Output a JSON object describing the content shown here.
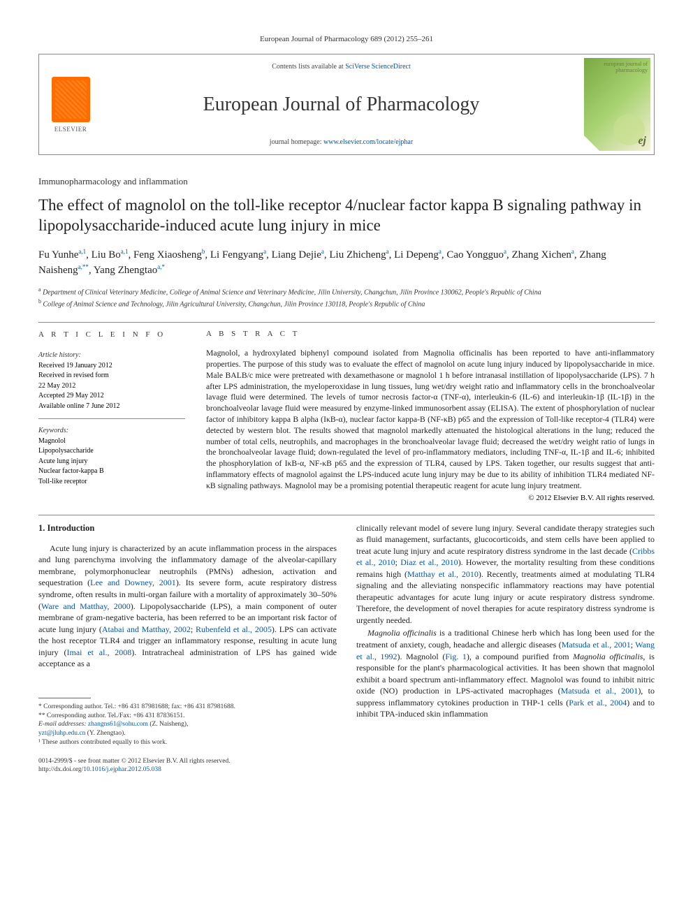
{
  "running_header": "European Journal of Pharmacology 689 (2012) 255–261",
  "masthead": {
    "publisher": "ELSEVIER",
    "contents_prefix": "Contents lists available at ",
    "contents_link": "SciVerse ScienceDirect",
    "journal_name": "European Journal of Pharmacology",
    "homepage_prefix": "journal homepage: ",
    "homepage_link": "www.elsevier.com/locate/ejphar",
    "cover_label": "european journal of pharmacology",
    "cover_monogram": "ej"
  },
  "article_type": "Immunopharmacology and inflammation",
  "title": "The effect of magnolol on the toll-like receptor 4/nuclear factor kappa B signaling pathway in lipopolysaccharide-induced acute lung injury in mice",
  "authors_html": "Fu Yunhe<sup>a,1</sup>, Liu Bo<sup>a,1</sup>, Feng Xiaosheng<sup>b</sup>, Li Fengyang<sup>a</sup>, Liang Dejie<sup>a</sup>, Liu Zhicheng<sup>a</sup>, Li Depeng<sup>a</sup>, Cao Yongguo<sup>a</sup>, Zhang Xichen<sup>a</sup>, Zhang Naisheng<sup>a,**</sup>, Yang Zhengtao<sup>a,*</sup>",
  "affiliations": [
    {
      "sup": "a",
      "text": "Department of Clinical Veterinary Medicine, College of Animal Science and Veterinary Medicine, Jilin University, Changchun, Jilin Province 130062, People's Republic of China"
    },
    {
      "sup": "b",
      "text": "College of Animal Science and Technology, Jilin Agricultural University, Changchun, Jilin Province 130118, People's Republic of China"
    }
  ],
  "info": {
    "label": "A R T I C L E   I N F O",
    "history_head": "Article history:",
    "history": [
      "Received 19 January 2012",
      "Received in revised form",
      "22 May 2012",
      "Accepted 29 May 2012",
      "Available online 7 June 2012"
    ],
    "keywords_head": "Keywords:",
    "keywords": [
      "Magnolol",
      "Lipopolysaccharide",
      "Acute lung injury",
      "Nuclear factor-kappa B",
      "Toll-like receptor"
    ]
  },
  "abstract": {
    "label": "A B S T R A C T",
    "text": "Magnolol, a hydroxylated biphenyl compound isolated from Magnolia officinalis has been reported to have anti-inflammatory properties. The purpose of this study was to evaluate the effect of magnolol on acute lung injury induced by lipopolysaccharide in mice. Male BALB/c mice were pretreated with dexamethasone or magnolol 1 h before intranasal instillation of lipopolysaccharide (LPS). 7 h after LPS administration, the myeloperoxidase in lung tissues, lung wet/dry weight ratio and inflammatory cells in the bronchoalveolar lavage fluid were determined. The levels of tumor necrosis factor-α (TNF-α), interleukin-6 (IL-6) and interleukin-1β (IL-1β) in the bronchoalveolar lavage fluid were measured by enzyme-linked immunosorbent assay (ELISA). The extent of phosphorylation of nuclear factor of inhibitory kappa B alpha (IκB-α), nuclear factor kappa-B (NF-κB) p65 and the expression of Toll-like receptor-4 (TLR4) were detected by western blot. The results showed that magnolol markedly attenuated the histological alterations in the lung; reduced the number of total cells, neutrophils, and macrophages in the bronchoalveolar lavage fluid; decreased the wet/dry weight ratio of lungs in the bronchoalveolar lavage fluid; down-regulated the level of pro-inflammatory mediators, including TNF-α, IL-1β and IL-6; inhibited the phosphorylation of IκB-α, NF-κB p65 and the expression of TLR4, caused by LPS. Taken together, our results suggest that anti-inflammatory effects of magnolol against the LPS-induced acute lung injury may be due to its ability of inhibition TLR4 mediated NF-κB signaling pathways. Magnolol may be a promising potential therapeutic reagent for acute lung injury treatment.",
    "copyright": "© 2012 Elsevier B.V. All rights reserved."
  },
  "body": {
    "heading": "1. Introduction",
    "left_para": "Acute lung injury is characterized by an acute inflammation process in the airspaces and lung parenchyma involving the inflammatory damage of the alveolar-capillary membrane, polymorphonuclear neutrophils (PMNs) adhesion, activation and sequestration (Lee and Downey, 2001). Its severe form, acute respiratory distress syndrome, often results in multi-organ failure with a mortality of approximately 30–50% (Ware and Matthay, 2000). Lipopolysaccharide (LPS), a main component of outer membrane of gram-negative bacteria, has been referred to be an important risk factor of acute lung injury (Atabai and Matthay, 2002; Rubenfeld et al., 2005). LPS can activate the host receptor TLR4 and trigger an inflammatory response, resulting in acute lung injury (Imai et al., 2008). Intratracheal administration of LPS has gained wide acceptance as a",
    "right_para1": "clinically relevant model of severe lung injury. Several candidate therapy strategies such as fluid management, surfactants, glucocorticoids, and stem cells have been applied to treat acute lung injury and acute respiratory distress syndrome in the last decade (Cribbs et al., 2010; Diaz et al., 2010). However, the mortality resulting from these conditions remains high (Matthay et al., 2010). Recently, treatments aimed at modulating TLR4 signaling and the alleviating nonspecific inflammatory reactions may have potential therapeutic advantages for acute lung injury or acute respiratory distress syndrome. Therefore, the development of novel therapies for acute respiratory distress syndrome is urgently needed.",
    "right_para2": "Magnolia officinalis is a traditional Chinese herb which has long been used for the treatment of anxiety, cough, headache and allergic diseases (Matsuda et al., 2001; Wang et al., 1992). Magnolol (Fig. 1), a compound purified from Magnolia officinalis, is responsible for the plant's pharmacological activities. It has been shown that magnolol exhibit a board spectrum anti-inflammatory effect. Magnolol was found to inhibit nitric oxide (NO) production in LPS-activated macrophages (Matsuda et al., 2001), to suppress inflammatory cytokines production in THP-1 cells (Park et al., 2004) and to inhibit TPA-induced skin inflammation"
  },
  "footnotes": {
    "corr1": "* Corresponding author. Tel.: +86 431 87981688; fax: +86 431 87981688.",
    "corr2": "** Corresponding author. Tel./Fax: +86 431 87836151.",
    "email_label": "E-mail addresses:",
    "email1": "zhangns61@sohu.com",
    "email1_who": "(Z. Naisheng),",
    "email2": "yzt@jluhp.edu.cn",
    "email2_who": "(Y. Zhengtao).",
    "equal": "¹ These authors contributed equally to this work."
  },
  "bottom": {
    "issn_line": "0014-2999/$ - see front matter © 2012 Elsevier B.V. All rights reserved.",
    "doi_label": "http://dx.doi.org/",
    "doi": "10.1016/j.ejphar.2012.05.038"
  },
  "style": {
    "link_color": "#0056b3",
    "text_color": "#222222",
    "rule_color": "#888888",
    "elsevier_orange": "#ff6d00",
    "cover_green": "#7aa842"
  }
}
